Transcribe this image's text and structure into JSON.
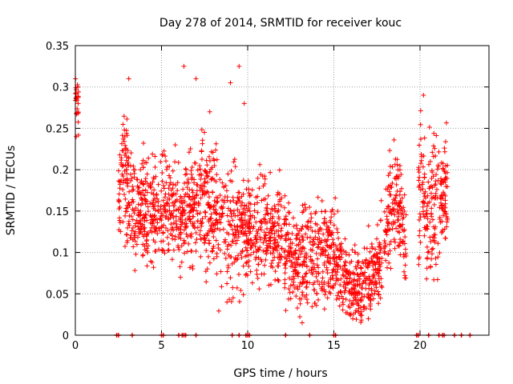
{
  "chart_data": {
    "type": "scatter",
    "title": "Day 278 of 2014, SRMTID for receiver kouc",
    "xlabel": "GPS time / hours",
    "ylabel": "SRMTID / TECUs",
    "xlim": [
      0,
      24
    ],
    "ylim": [
      0,
      0.35
    ],
    "xticks": [
      0,
      5,
      10,
      15,
      20
    ],
    "xtick_labels": [
      "0",
      "5",
      "10",
      "15",
      "20"
    ],
    "yticks": [
      0,
      0.05,
      0.1,
      0.15,
      0.2,
      0.25,
      0.3,
      0.35
    ],
    "ytick_labels": [
      "0",
      "0.05",
      "0.1",
      "0.15",
      "0.2",
      "0.25",
      "0.3",
      "0.35"
    ],
    "grid": true,
    "marker": "+",
    "color": "#ff0000",
    "profile": {
      "hours": [
        0.0,
        0.2,
        2.5,
        2.8,
        3.0,
        3.3,
        3.6,
        4.0,
        4.5,
        5.0,
        5.5,
        6.0,
        6.5,
        7.0,
        7.5,
        8.0,
        8.5,
        9.0,
        9.5,
        10.0,
        10.5,
        11.0,
        11.5,
        12.0,
        12.5,
        13.0,
        13.5,
        14.0,
        14.5,
        15.0,
        15.5,
        16.0,
        16.5,
        17.0,
        17.5,
        17.8,
        18.2,
        18.6,
        19.0,
        19.4,
        20.0,
        20.4,
        20.8,
        21.2,
        21.5
      ],
      "centers": [
        0.28,
        0.28,
        0.16,
        0.22,
        0.18,
        0.15,
        0.15,
        0.15,
        0.15,
        0.15,
        0.15,
        0.15,
        0.15,
        0.16,
        0.16,
        0.15,
        0.14,
        0.13,
        0.13,
        0.13,
        0.13,
        0.13,
        0.12,
        0.12,
        0.1,
        0.09,
        0.1,
        0.09,
        0.1,
        0.1,
        0.07,
        0.06,
        0.06,
        0.07,
        0.08,
        0.1,
        0.15,
        0.17,
        0.13,
        0.1,
        0.18,
        0.14,
        0.16,
        0.16,
        0.17
      ],
      "spread": [
        0.02,
        0.02,
        0.04,
        0.05,
        0.05,
        0.04,
        0.04,
        0.04,
        0.04,
        0.04,
        0.04,
        0.04,
        0.04,
        0.04,
        0.05,
        0.05,
        0.05,
        0.05,
        0.05,
        0.04,
        0.04,
        0.04,
        0.04,
        0.04,
        0.04,
        0.04,
        0.04,
        0.04,
        0.04,
        0.04,
        0.03,
        0.03,
        0.03,
        0.03,
        0.03,
        0.04,
        0.04,
        0.04,
        0.04,
        0.04,
        0.05,
        0.05,
        0.05,
        0.04,
        0.04
      ]
    },
    "segments": [
      [
        0.0,
        0.2
      ],
      [
        2.5,
        12.0
      ],
      [
        12.1,
        17.8
      ],
      [
        17.9,
        19.2
      ],
      [
        19.9,
        21.6
      ]
    ],
    "outliers": [
      {
        "x": 0.15,
        "y": 0.3
      },
      {
        "x": 0.05,
        "y": 0.24
      },
      {
        "x": 3.1,
        "y": 0.31
      },
      {
        "x": 6.3,
        "y": 0.325
      },
      {
        "x": 7.0,
        "y": 0.31
      },
      {
        "x": 9.5,
        "y": 0.325
      },
      {
        "x": 9.0,
        "y": 0.305
      },
      {
        "x": 20.2,
        "y": 0.29
      },
      {
        "x": 7.8,
        "y": 0.27
      },
      {
        "x": 5.8,
        "y": 0.23
      },
      {
        "x": 9.8,
        "y": 0.28
      },
      {
        "x": 16.1,
        "y": 0.02
      },
      {
        "x": 17.0,
        "y": 0.02
      },
      {
        "x": 20.8,
        "y": 0.067
      },
      {
        "x": 8.8,
        "y": 0.04
      },
      {
        "x": 6.1,
        "y": 0.07
      }
    ],
    "zero_markers_hours": [
      2.4,
      2.5,
      3.3,
      5.0,
      5.1,
      6.0,
      6.2,
      6.3,
      6.4,
      7.0,
      9.1,
      9.5,
      9.9,
      10.0,
      10.1,
      12.2,
      13.6,
      15.0,
      15.1,
      19.8,
      19.9,
      20.5,
      21.1,
      21.3,
      21.4,
      22.0,
      22.4,
      22.9
    ]
  }
}
